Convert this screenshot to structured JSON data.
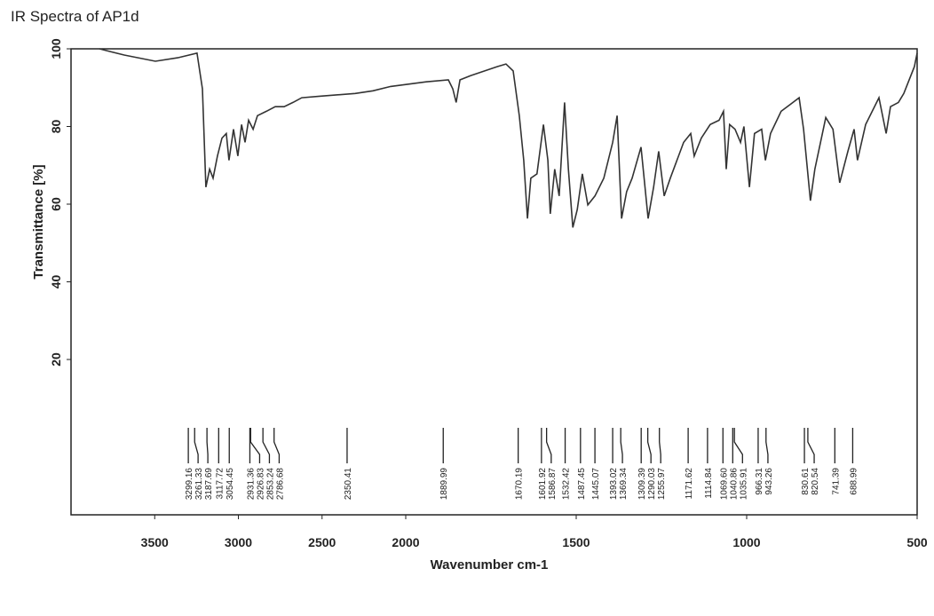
{
  "chart_data": {
    "type": "line",
    "title": "IR Spectra of AP1d",
    "xlabel": "Wavenumber cm-1",
    "ylabel": "Transmittance [%]",
    "xlim": [
      4000,
      500
    ],
    "x_scale_change": 2000,
    "ylim": [
      -20,
      100
    ],
    "xticks": [
      3500,
      3000,
      2500,
      2000,
      1500,
      1000,
      500
    ],
    "yticks": [
      20,
      40,
      60,
      80,
      100
    ],
    "color": "#333333",
    "x": [
      3830,
      3682,
      3496,
      3363,
      3247,
      3215,
      3194,
      3172,
      3151,
      3125,
      3098,
      3072,
      3056,
      3029,
      3003,
      2981,
      2960,
      2939,
      2912,
      2886,
      2833,
      2780,
      2727,
      2674,
      2621,
      2515,
      2302,
      2196,
      2090,
      1940,
      1875,
      1862,
      1852,
      1841,
      1810,
      1732,
      1706,
      1685,
      1667,
      1654,
      1643,
      1633,
      1615,
      1596,
      1583,
      1576,
      1563,
      1550,
      1534,
      1523,
      1510,
      1497,
      1482,
      1466,
      1445,
      1419,
      1393,
      1380,
      1367,
      1352,
      1336,
      1310,
      1289,
      1273,
      1258,
      1242,
      1224,
      1185,
      1164,
      1154,
      1133,
      1107,
      1081,
      1068,
      1060,
      1050,
      1034,
      1018,
      1008,
      992,
      977,
      956,
      945,
      930,
      899,
      846,
      833,
      813,
      800,
      768,
      747,
      727,
      703,
      685,
      675,
      651,
      612,
      591,
      578,
      555,
      539,
      508,
      500
    ],
    "values": [
      100,
      98.4,
      96.8,
      97.7,
      98.9,
      89.7,
      64.4,
      69,
      66.7,
      72.4,
      77,
      78.2,
      71.3,
      79.3,
      72.4,
      80.5,
      75.9,
      81.6,
      79.3,
      82.8,
      83.9,
      85.1,
      85.1,
      86.2,
      87.4,
      87.8,
      88.5,
      89.2,
      90.3,
      91.5,
      92,
      89.7,
      86.2,
      92,
      93.1,
      95.4,
      96.1,
      94.3,
      82.8,
      71.3,
      56.3,
      66.7,
      67.8,
      80.5,
      71.3,
      57.5,
      69,
      62.1,
      86.2,
      69,
      54,
      58.6,
      67.8,
      59.8,
      62.1,
      66.7,
      75.9,
      82.8,
      56.3,
      63.2,
      66.7,
      74.7,
      56.3,
      64.4,
      73.6,
      62.1,
      66.7,
      75.9,
      78.2,
      72.4,
      77,
      80.5,
      81.6,
      83.9,
      69,
      80.5,
      79.3,
      75.9,
      80,
      64.4,
      78.2,
      79.3,
      71.3,
      78.2,
      83.9,
      87.4,
      79.3,
      60.9,
      69,
      82.3,
      79.3,
      65.5,
      73.6,
      79.3,
      71.3,
      80.5,
      87.4,
      78.2,
      85.1,
      86.2,
      88.5,
      95.4,
      98.9
    ],
    "peaks": [
      3299.16,
      3261.33,
      3187.69,
      3117.72,
      3054.45,
      2931.36,
      2926.83,
      2853.24,
      2786.68,
      2350.41,
      1889.99,
      1670.19,
      1601.92,
      1586.87,
      1532.42,
      1487.45,
      1445.07,
      1393.02,
      1369.34,
      1309.39,
      1290.03,
      1255.97,
      1171.62,
      1114.84,
      {
        "value": 1069.6,
        "label": "1069.60"
      },
      1040.86,
      1035.91,
      966.31,
      943.26,
      830.61,
      820.54,
      741.39,
      688.99
    ]
  }
}
